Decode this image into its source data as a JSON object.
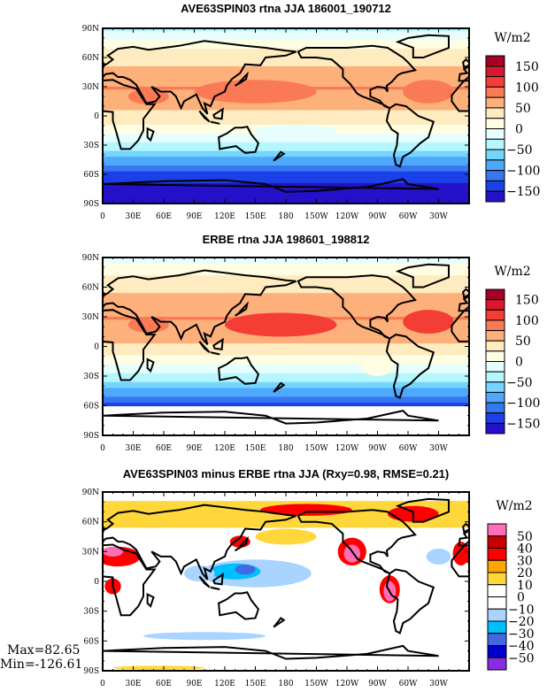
{
  "chart_data": [
    {
      "type": "heatmap",
      "title": "AVE63SPIN03 rtna JJA 186001_190712",
      "units": "W/m2",
      "x_ticks": [
        "0",
        "30E",
        "60E",
        "90E",
        "120E",
        "150E",
        "180",
        "150W",
        "120W",
        "90W",
        "60W",
        "30W"
      ],
      "y_ticks": [
        "90N",
        "60N",
        "30N",
        "0",
        "30S",
        "60S",
        "90S"
      ],
      "colorbar": {
        "levels": [
          150,
          125,
          100,
          75,
          50,
          25,
          0,
          -25,
          -50,
          -75,
          -100,
          -125,
          -150
        ],
        "labels": [
          "150",
          "100",
          "50",
          "0",
          "-50",
          "-100",
          "-150"
        ],
        "colors": [
          "#a50026",
          "#d7192d",
          "#f43d35",
          "#fa7a56",
          "#fdb07a",
          "#feebc0",
          "#fffee2",
          "#e6fffe",
          "#b5f6ff",
          "#74d6ff",
          "#4fa8fb",
          "#3577f0",
          "#1c40e8",
          "#2411c9"
        ]
      },
      "zonal_lat": [
        90,
        75,
        60,
        45,
        30,
        15,
        0,
        -15,
        -30,
        -45,
        -60,
        -75,
        -90
      ],
      "zonal_values": [
        -30,
        15,
        40,
        60,
        75,
        60,
        40,
        5,
        -40,
        -90,
        -140,
        -160,
        -160
      ],
      "features": [
        [
          150,
          25,
          60,
          12,
          85
        ],
        [
          320,
          25,
          25,
          12,
          85
        ],
        [
          45,
          20,
          20,
          8,
          95
        ],
        [
          190,
          -15,
          40,
          6,
          -15
        ]
      ]
    },
    {
      "type": "heatmap",
      "title": "ERBE rtna JJA 198601_198812",
      "units": "W/m2",
      "x_ticks": [
        "0",
        "30E",
        "60E",
        "90E",
        "120E",
        "150E",
        "180",
        "150W",
        "120W",
        "90W",
        "60W",
        "30W"
      ],
      "y_ticks": [
        "90N",
        "60N",
        "30N",
        "0",
        "30S",
        "60S",
        "90S"
      ],
      "colorbar": {
        "levels": [
          150,
          125,
          100,
          75,
          50,
          25,
          0,
          -25,
          -50,
          -75,
          -100,
          -125,
          -150
        ],
        "labels": [
          "150",
          "100",
          "50",
          "0",
          "-50",
          "-100",
          "-150"
        ],
        "colors": [
          "#a50026",
          "#d7192d",
          "#f43d35",
          "#fa7a56",
          "#fdb07a",
          "#feebc0",
          "#fffee2",
          "#e6fffe",
          "#b5f6ff",
          "#74d6ff",
          "#4fa8fb",
          "#3577f0",
          "#1c40e8",
          "#2411c9"
        ]
      },
      "zonal_lat": [
        90,
        75,
        60,
        45,
        30,
        15,
        0,
        -15,
        -30,
        -45,
        -60
      ],
      "zonal_values": [
        -10,
        20,
        45,
        60,
        75,
        65,
        45,
        5,
        -40,
        -90,
        -135
      ],
      "features": [
        [
          175,
          22,
          55,
          12,
          100
        ],
        [
          320,
          25,
          25,
          12,
          100
        ],
        [
          45,
          22,
          20,
          8,
          95
        ],
        [
          270,
          -20,
          15,
          10,
          20
        ]
      ]
    },
    {
      "type": "heatmap",
      "title": "AVE63SPIN03 minus ERBE rtna JJA (Rxy=0.98, RMSE=0.21)",
      "units": "W/m2",
      "x_ticks": [
        "0",
        "30E",
        "60E",
        "90E",
        "120E",
        "150E",
        "180",
        "150W",
        "120W",
        "90W",
        "60W",
        "30W"
      ],
      "y_ticks": [
        "90N",
        "60N",
        "30N",
        "0",
        "30S",
        "60S",
        "90S"
      ],
      "colorbar": {
        "levels": [
          50,
          40,
          30,
          20,
          10,
          0,
          -10,
          -20,
          -30,
          -40,
          -50
        ],
        "labels": [
          "50",
          "40",
          "30",
          "20",
          "10",
          "0",
          "-10",
          "-20",
          "-30",
          "-40",
          "-50"
        ],
        "colors": [
          "#ff6eb4",
          "#c80000",
          "#ff0000",
          "#ffa500",
          "#ffd73a",
          "#ffffff",
          "#ffffff",
          "#a8d4ff",
          "#00bfff",
          "#4169e1",
          "#0000cd",
          "#8a2be2"
        ]
      },
      "zonal_lat": [
        90,
        80,
        70,
        50,
        30,
        0,
        -30,
        -60,
        -90
      ],
      "zonal_values": [
        0,
        15,
        20,
        5,
        0,
        0,
        0,
        0,
        0
      ],
      "features": [
        [
          150,
          8,
          55,
          14,
          -15
        ],
        [
          130,
          10,
          25,
          8,
          -25
        ],
        [
          140,
          12,
          10,
          5,
          -35
        ],
        [
          95,
          8,
          15,
          8,
          -15
        ],
        [
          245,
          30,
          14,
          14,
          35
        ],
        [
          245,
          28,
          8,
          9,
          55
        ],
        [
          282,
          -8,
          10,
          14,
          35
        ],
        [
          282,
          -10,
          6,
          10,
          55
        ],
        [
          15,
          25,
          22,
          10,
          35
        ],
        [
          10,
          30,
          10,
          5,
          55
        ],
        [
          200,
          72,
          45,
          6,
          30
        ],
        [
          305,
          68,
          25,
          8,
          35
        ],
        [
          180,
          45,
          30,
          8,
          15
        ],
        [
          135,
          40,
          10,
          6,
          35
        ],
        [
          330,
          25,
          12,
          8,
          -15
        ],
        [
          352,
          28,
          8,
          12,
          35
        ],
        [
          100,
          -55,
          60,
          4,
          -15
        ],
        [
          55,
          -87,
          45,
          2,
          15
        ],
        [
          10,
          -5,
          8,
          8,
          35
        ]
      ],
      "stats": {
        "max": "Max=82.65",
        "min": "Min=-126.61"
      }
    }
  ]
}
